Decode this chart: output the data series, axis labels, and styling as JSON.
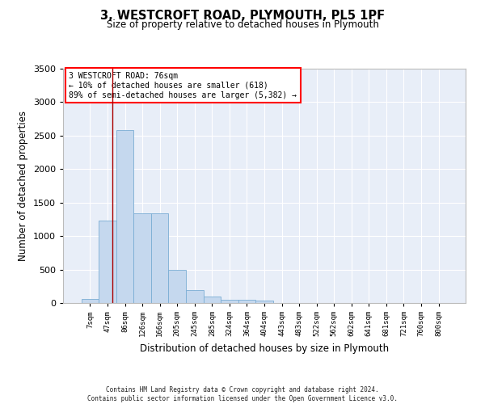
{
  "title1": "3, WESTCROFT ROAD, PLYMOUTH, PL5 1PF",
  "title2": "Size of property relative to detached houses in Plymouth",
  "xlabel": "Distribution of detached houses by size in Plymouth",
  "ylabel": "Number of detached properties",
  "bar_color": "#c5d8ee",
  "bar_edge_color": "#7aadd4",
  "background_color": "#e8eef8",
  "grid_color": "#ffffff",
  "categories": [
    "7sqm",
    "47sqm",
    "86sqm",
    "126sqm",
    "166sqm",
    "205sqm",
    "245sqm",
    "285sqm",
    "324sqm",
    "364sqm",
    "404sqm",
    "443sqm",
    "483sqm",
    "522sqm",
    "562sqm",
    "602sqm",
    "641sqm",
    "681sqm",
    "721sqm",
    "760sqm",
    "800sqm"
  ],
  "values": [
    60,
    1230,
    2580,
    1340,
    1340,
    490,
    190,
    100,
    50,
    50,
    40,
    0,
    0,
    0,
    0,
    0,
    0,
    0,
    0,
    0,
    0
  ],
  "ylim": [
    0,
    3500
  ],
  "yticks": [
    0,
    500,
    1000,
    1500,
    2000,
    2500,
    3000,
    3500
  ],
  "red_line_x": 1.27,
  "annotation_line1": "3 WESTCROFT ROAD: 76sqm",
  "annotation_line2": "← 10% of detached houses are smaller (618)",
  "annotation_line3": "89% of semi-detached houses are larger (5,382) →",
  "footer1": "Contains HM Land Registry data © Crown copyright and database right 2024.",
  "footer2": "Contains public sector information licensed under the Open Government Licence v3.0."
}
